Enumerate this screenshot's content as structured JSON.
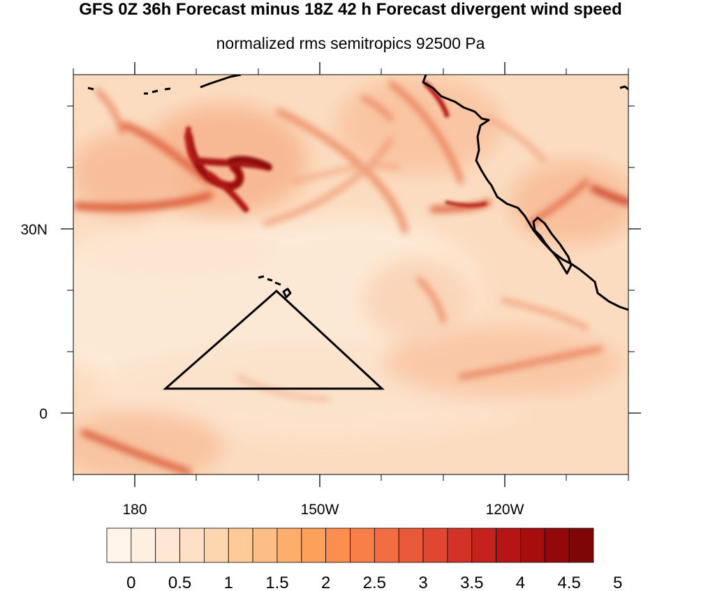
{
  "title": "GFS 0Z 36h Forecast minus 18Z 42 h Forecast divergent wind speed",
  "subtitle": "normalized rms semitropics 92500 Pa",
  "axes": {
    "lon_labels": [
      "180",
      "150W",
      "120W"
    ],
    "lat_labels": [
      "30N",
      "0"
    ]
  },
  "colorbar": {
    "labels": [
      "0",
      "0.5",
      "1",
      "1.5",
      "2",
      "2.5",
      "3",
      "3.5",
      "4",
      "4.5",
      "5"
    ],
    "colors": [
      "#fff5eb",
      "#feefe0",
      "#fee8d3",
      "#fde0c5",
      "#fdd5ae",
      "#fdca98",
      "#fdbe85",
      "#fdae6b",
      "#fda05c",
      "#fc8f4f",
      "#f87f48",
      "#f26e42",
      "#ea5a3a",
      "#e04631",
      "#d33327",
      "#c5221d",
      "#b51515",
      "#a60e0e",
      "#930909",
      "#7f0606"
    ]
  },
  "map": {
    "background_color": "#fbdcc0",
    "coast_color": "#000000"
  }
}
